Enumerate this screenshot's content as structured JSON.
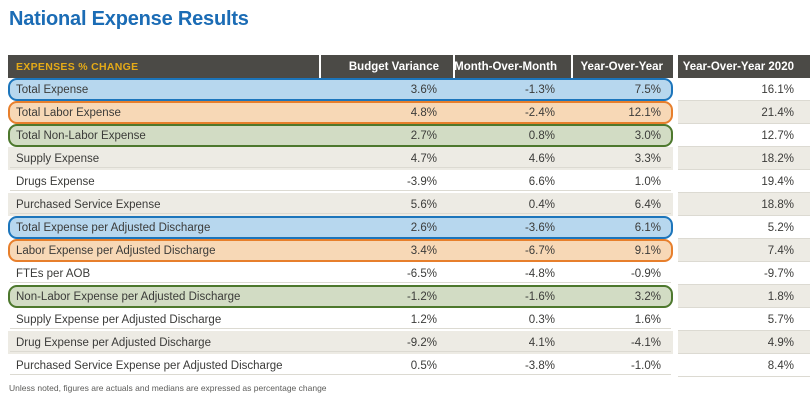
{
  "chart_data": {
    "type": "table",
    "title": "National Expense Results",
    "header": {
      "label_col": "EXPENSES % CHANGE",
      "columns": [
        "Budget Variance",
        "Month-Over-Month",
        "Year-Over-Year",
        "Year-Over-Year 2020"
      ]
    },
    "rows": [
      {
        "label": "Total Expense",
        "values": [
          "3.6%",
          "-1.3%",
          "7.5%",
          "16.1%"
        ],
        "highlight": "blue"
      },
      {
        "label": "Total Labor Expense",
        "values": [
          "4.8%",
          "-2.4%",
          "12.1%",
          "21.4%"
        ],
        "highlight": "orange"
      },
      {
        "label": "Total Non-Labor Expense",
        "values": [
          "2.7%",
          "0.8%",
          "3.0%",
          "12.7%"
        ],
        "highlight": "green"
      },
      {
        "label": "Supply Expense",
        "values": [
          "4.7%",
          "4.6%",
          "3.3%",
          "18.2%"
        ],
        "highlight": null
      },
      {
        "label": "Drugs Expense",
        "values": [
          "-3.9%",
          "6.6%",
          "1.0%",
          "19.4%"
        ],
        "highlight": null
      },
      {
        "label": "Purchased Service Expense",
        "values": [
          "5.6%",
          "0.4%",
          "6.4%",
          "18.8%"
        ],
        "highlight": null
      },
      {
        "label": "Total Expense per Adjusted Discharge",
        "values": [
          "2.6%",
          "-3.6%",
          "6.1%",
          "5.2%"
        ],
        "highlight": "blue"
      },
      {
        "label": "Labor Expense per Adjusted Discharge",
        "values": [
          "3.4%",
          "-6.7%",
          "9.1%",
          "7.4%"
        ],
        "highlight": "orange"
      },
      {
        "label": "FTEs per AOB",
        "values": [
          "-6.5%",
          "-4.8%",
          "-0.9%",
          "-9.7%"
        ],
        "highlight": null
      },
      {
        "label": "Non-Labor Expense per Adjusted Discharge",
        "values": [
          "-1.2%",
          "-1.6%",
          "3.2%",
          "1.8%"
        ],
        "highlight": "green"
      },
      {
        "label": "Supply Expense per Adjusted Discharge",
        "values": [
          "1.2%",
          "0.3%",
          "1.6%",
          "5.7%"
        ],
        "highlight": null
      },
      {
        "label": "Drug Expense per Adjusted Discharge",
        "values": [
          "-9.2%",
          "4.1%",
          "-4.1%",
          "4.9%"
        ],
        "highlight": null
      },
      {
        "label": "Purchased Service Expense per Adjusted Discharge",
        "values": [
          "0.5%",
          "-3.8%",
          "-1.0%",
          "8.4%"
        ],
        "highlight": null
      }
    ],
    "footnote": "Unless noted, figures are actuals and medians are expressed as percentage change"
  },
  "colors": {
    "title_blue": "#1b6cb5",
    "header_bg": "#4b4a46",
    "header_accent_gold": "#e5aa17",
    "highlight_blue_fill": "#b7d7ee",
    "highlight_blue_border": "#1c75bb",
    "highlight_orange_fill": "#f7d8b6",
    "highlight_orange_border": "#e77f2c",
    "highlight_green_fill": "#d2dcc4",
    "highlight_green_border": "#4d782d",
    "zebra_row_gray": "#edebe4"
  }
}
